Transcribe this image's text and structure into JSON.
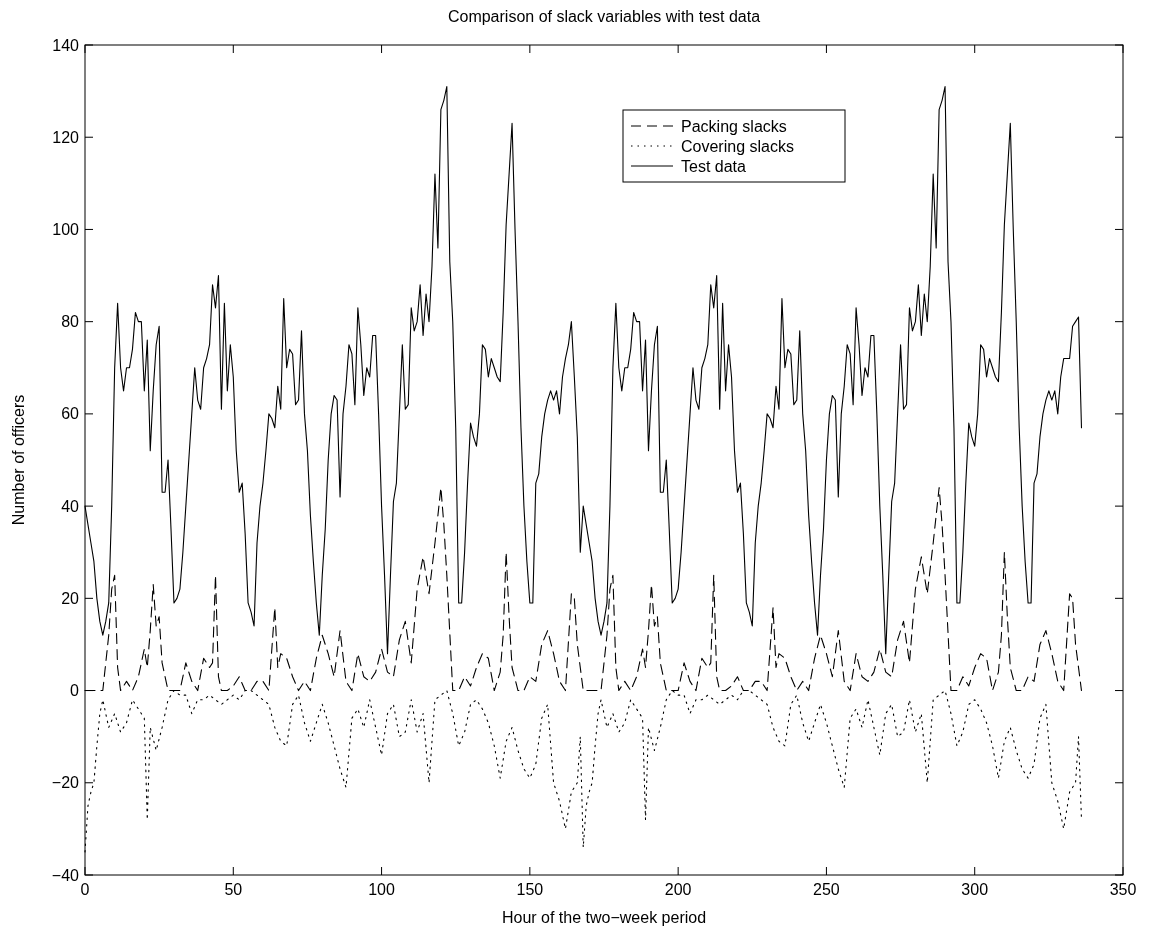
{
  "chart_data": {
    "type": "line",
    "title": "Comparison of slack variables with test data",
    "xlabel": "Hour of the two−week period",
    "ylabel": "Number of officers",
    "xlim": [
      0,
      350
    ],
    "xticks": [
      0,
      50,
      100,
      150,
      200,
      250,
      300,
      350
    ],
    "ylim": [
      -40,
      140
    ],
    "yticks": [
      {
        "value": -40,
        "label": "−40"
      },
      {
        "value": -20,
        "label": "−20"
      },
      0,
      20,
      40,
      60,
      80,
      100,
      120,
      140
    ],
    "grid": false,
    "legend": "top",
    "marker": "none",
    "series": [
      {
        "name": "Packing slacks",
        "color": "#000000",
        "line_style": "dashed",
        "x": [
          0,
          4,
          6,
          8,
          9,
          10,
          11,
          12,
          14,
          16,
          18,
          20,
          21,
          22,
          23,
          24,
          25,
          26,
          28,
          30,
          32,
          34,
          36,
          38,
          40,
          42,
          43,
          44,
          45,
          46,
          48,
          50,
          52,
          54,
          56,
          58,
          60,
          62,
          64,
          65,
          66,
          68,
          70,
          72,
          74,
          76,
          78,
          80,
          82,
          84,
          86,
          88,
          90,
          92,
          94,
          96,
          98,
          100,
          102,
          104,
          106,
          108,
          110,
          112,
          114,
          116,
          118,
          120,
          121,
          122,
          124,
          126,
          128,
          130,
          132,
          134,
          136,
          138,
          140,
          141,
          142,
          143,
          144,
          146,
          148,
          150,
          152,
          154,
          156,
          158,
          160,
          162,
          164,
          165,
          166,
          168,
          172,
          174,
          176,
          177,
          178,
          179,
          180,
          182,
          184,
          186,
          188,
          189,
          190,
          191,
          192,
          193,
          194,
          196,
          198,
          200,
          202,
          204,
          206,
          208,
          210,
          211,
          212,
          213,
          214,
          216,
          218,
          220,
          222,
          224,
          226,
          228,
          230,
          232,
          233,
          234,
          236,
          238,
          240,
          242,
          244,
          246,
          248,
          250,
          252,
          254,
          256,
          258,
          260,
          262,
          264,
          266,
          268,
          270,
          272,
          274,
          276,
          278,
          280,
          282,
          284,
          286,
          288,
          289,
          290,
          292,
          294,
          296,
          298,
          300,
          302,
          304,
          306,
          308,
          309,
          310,
          311,
          312,
          314,
          316,
          318,
          320,
          322,
          324,
          326,
          328,
          330,
          332,
          333,
          334,
          336
        ],
        "values": [
          0,
          0,
          0,
          12,
          22,
          25,
          5,
          0,
          2,
          0,
          3,
          9,
          5,
          13,
          23,
          14,
          16,
          6,
          0,
          0,
          0,
          6,
          2,
          0,
          7,
          5,
          6,
          25,
          3,
          0,
          0,
          1,
          3,
          0,
          0,
          2,
          2,
          0,
          18,
          5,
          8,
          7,
          3,
          0,
          2,
          0,
          7,
          12,
          8,
          3,
          13,
          2,
          0,
          8,
          3,
          2,
          4,
          9,
          4,
          3,
          11,
          15,
          6,
          22,
          29,
          21,
          32,
          44,
          36,
          25,
          0,
          0,
          3,
          1,
          5,
          8,
          7,
          0,
          4,
          12,
          30,
          16,
          5,
          0,
          0,
          3,
          2,
          10,
          13,
          8,
          2,
          0,
          21,
          20,
          10,
          0,
          0,
          0,
          12,
          22,
          25,
          5,
          0,
          2,
          0,
          3,
          9,
          5,
          13,
          23,
          14,
          16,
          6,
          0,
          0,
          0,
          6,
          2,
          0,
          7,
          5,
          6,
          25,
          3,
          0,
          0,
          1,
          3,
          0,
          0,
          2,
          2,
          0,
          18,
          5,
          8,
          7,
          3,
          0,
          2,
          0,
          7,
          12,
          8,
          3,
          13,
          2,
          0,
          8,
          3,
          2,
          4,
          9,
          4,
          3,
          11,
          15,
          6,
          22,
          29,
          21,
          32,
          44,
          36,
          25,
          0,
          0,
          3,
          1,
          5,
          8,
          7,
          0,
          4,
          12,
          30,
          16,
          5,
          0,
          0,
          3,
          2,
          10,
          13,
          8,
          2,
          0,
          21,
          20,
          10,
          0
        ]
      },
      {
        "name": "Covering slacks",
        "color": "#000000",
        "line_style": "dotted",
        "x": [
          0,
          1,
          2,
          3,
          4,
          5,
          6,
          8,
          10,
          12,
          14,
          16,
          18,
          20,
          21,
          22,
          24,
          26,
          28,
          30,
          32,
          34,
          36,
          38,
          40,
          42,
          44,
          46,
          48,
          50,
          52,
          54,
          56,
          58,
          60,
          62,
          64,
          66,
          68,
          70,
          72,
          74,
          76,
          78,
          80,
          82,
          84,
          86,
          88,
          90,
          92,
          94,
          96,
          98,
          100,
          102,
          104,
          106,
          108,
          110,
          112,
          114,
          116,
          118,
          120,
          122,
          124,
          126,
          128,
          130,
          132,
          134,
          136,
          138,
          140,
          142,
          144,
          146,
          148,
          150,
          152,
          154,
          156,
          158,
          160,
          162,
          164,
          166,
          167,
          168,
          169,
          170,
          171,
          172,
          173,
          174,
          176,
          178,
          180,
          182,
          184,
          186,
          188,
          189,
          190,
          192,
          194,
          196,
          198,
          200,
          202,
          204,
          206,
          208,
          210,
          212,
          214,
          216,
          218,
          220,
          222,
          224,
          226,
          228,
          230,
          232,
          234,
          236,
          238,
          240,
          242,
          244,
          246,
          248,
          250,
          252,
          254,
          256,
          258,
          260,
          262,
          264,
          266,
          268,
          270,
          272,
          274,
          276,
          278,
          280,
          282,
          284,
          286,
          288,
          290,
          292,
          294,
          296,
          298,
          300,
          302,
          304,
          306,
          308,
          310,
          312,
          314,
          316,
          318,
          320,
          322,
          324,
          326,
          328,
          330,
          332,
          334,
          335,
          336
        ],
        "values": [
          -35,
          -25,
          -22,
          -20,
          -12,
          -5,
          -2,
          -8,
          -5,
          -9,
          -7,
          -2,
          -4,
          -6,
          -28,
          -8,
          -13,
          -8,
          -2,
          0,
          -1,
          -1,
          -5,
          -2,
          -2,
          -1,
          -2,
          -3,
          -2,
          -1,
          -2,
          0,
          0,
          -1,
          -2,
          -3,
          -8,
          -11,
          -12,
          -3,
          -1,
          -7,
          -11,
          -7,
          -3,
          -7,
          -12,
          -17,
          -21,
          -6,
          -4,
          -8,
          -2,
          -8,
          -14,
          -5,
          -3,
          -10,
          -9,
          -2,
          -9,
          -5,
          -20,
          -2,
          -1,
          0,
          -5,
          -12,
          -9,
          -3,
          -2,
          -4,
          -7,
          -12,
          -19,
          -11,
          -8,
          -13,
          -17,
          -19,
          -16,
          -6,
          -3,
          -20,
          -24,
          -30,
          -22,
          -20,
          -10,
          -34,
          -25,
          -22,
          -20,
          -12,
          -5,
          -2,
          -8,
          -5,
          -9,
          -7,
          -2,
          -4,
          -6,
          -28,
          -8,
          -13,
          -8,
          -2,
          0,
          -1,
          -1,
          -5,
          -2,
          -2,
          -1,
          -2,
          -3,
          -2,
          -1,
          -2,
          0,
          0,
          -1,
          -2,
          -3,
          -8,
          -11,
          -12,
          -3,
          -1,
          -7,
          -11,
          -7,
          -3,
          -7,
          -12,
          -17,
          -21,
          -6,
          -4,
          -8,
          -2,
          -8,
          -14,
          -5,
          -3,
          -10,
          -9,
          -2,
          -9,
          -5,
          -20,
          -2,
          -1,
          0,
          -5,
          -12,
          -9,
          -3,
          -2,
          -4,
          -7,
          -12,
          -19,
          -11,
          -8,
          -13,
          -17,
          -19,
          -16,
          -6,
          -3,
          -20,
          -24,
          -30,
          -22,
          -20,
          -10,
          -28
        ]
      },
      {
        "name": "Test data",
        "color": "#000000",
        "line_style": "solid",
        "x": [
          0,
          1,
          2,
          3,
          4,
          5,
          6,
          7,
          8,
          9,
          10,
          11,
          12,
          13,
          14,
          15,
          16,
          17,
          18,
          19,
          20,
          21,
          22,
          23,
          24,
          25,
          26,
          27,
          28,
          29,
          30,
          31,
          32,
          33,
          34,
          35,
          36,
          37,
          38,
          39,
          40,
          41,
          42,
          43,
          44,
          45,
          46,
          47,
          48,
          49,
          50,
          51,
          52,
          53,
          54,
          55,
          56,
          57,
          58,
          59,
          60,
          61,
          62,
          63,
          64,
          65,
          66,
          67,
          68,
          69,
          70,
          71,
          72,
          73,
          74,
          75,
          76,
          77,
          78,
          79,
          80,
          81,
          82,
          83,
          84,
          85,
          86,
          87,
          88,
          89,
          90,
          91,
          92,
          93,
          94,
          95,
          96,
          97,
          98,
          99,
          100,
          101,
          102,
          103,
          104,
          105,
          106,
          107,
          108,
          109,
          110,
          111,
          112,
          113,
          114,
          115,
          116,
          117,
          118,
          119,
          120,
          121,
          122,
          123,
          124,
          125,
          126,
          127,
          128,
          129,
          130,
          131,
          132,
          133,
          134,
          135,
          136,
          137,
          138,
          139,
          140,
          141,
          142,
          143,
          144,
          145,
          146,
          147,
          148,
          149,
          150,
          151,
          152,
          153,
          154,
          155,
          156,
          157,
          158,
          159,
          160,
          161,
          162,
          163,
          164,
          165,
          166,
          167,
          168,
          169,
          170,
          171,
          172,
          173,
          174,
          175,
          176,
          177,
          178,
          179,
          180,
          181,
          182,
          183,
          184,
          185,
          186,
          187,
          188,
          189,
          190,
          191,
          192,
          193,
          194,
          195,
          196,
          197,
          198,
          199,
          200,
          201,
          202,
          203,
          204,
          205,
          206,
          207,
          208,
          209,
          210,
          211,
          212,
          213,
          214,
          215,
          216,
          217,
          218,
          219,
          220,
          221,
          222,
          223,
          224,
          225,
          226,
          227,
          228,
          229,
          230,
          231,
          232,
          233,
          234,
          235,
          236,
          237,
          238,
          239,
          240,
          241,
          242,
          243,
          244,
          245,
          246,
          247,
          248,
          249,
          250,
          251,
          252,
          253,
          254,
          255,
          256,
          257,
          258,
          259,
          260,
          261,
          262,
          263,
          264,
          265,
          266,
          267,
          268,
          269,
          270,
          271,
          272,
          273,
          274,
          275,
          276,
          277,
          278,
          279,
          280,
          281,
          282,
          283,
          284,
          285,
          286,
          287,
          288,
          289,
          290,
          291,
          292,
          293,
          294,
          295,
          296,
          297,
          298,
          299,
          300,
          301,
          302,
          303,
          304,
          305,
          306,
          307,
          308,
          309,
          310,
          311,
          312,
          313,
          314,
          315,
          316,
          317,
          318,
          319,
          320,
          321,
          322,
          323,
          324,
          325,
          326,
          327,
          328,
          329,
          330,
          331,
          332,
          333,
          334,
          335,
          336
        ],
        "values": [
          40,
          36,
          32,
          28,
          20,
          15,
          12,
          15,
          19,
          40,
          70,
          84,
          70,
          65,
          70,
          70,
          74,
          82,
          80,
          80,
          65,
          76,
          52,
          65,
          75,
          79,
          43,
          43,
          50,
          35,
          19,
          20,
          22,
          30,
          40,
          50,
          60,
          70,
          63,
          61,
          70,
          72,
          75,
          88,
          83,
          90,
          61,
          84,
          65,
          75,
          68,
          52,
          43,
          45,
          34,
          19,
          17,
          14,
          32,
          40,
          45,
          52,
          60,
          59,
          57,
          66,
          61,
          85,
          70,
          74,
          73,
          62,
          63,
          78,
          60,
          52,
          38,
          28,
          19,
          12,
          25,
          35,
          50,
          60,
          64,
          63,
          42,
          60,
          66,
          75,
          73,
          62,
          83,
          75,
          64,
          70,
          68,
          77,
          77,
          60,
          40,
          25,
          8,
          25,
          41,
          45,
          60,
          75,
          61,
          62,
          83,
          78,
          80,
          88,
          77,
          86,
          80,
          92,
          112,
          96,
          126,
          128,
          131,
          93,
          80,
          57,
          19,
          19,
          30,
          45,
          58,
          55,
          53,
          60,
          75,
          74,
          68,
          72,
          70,
          68,
          67,
          82,
          101,
          112,
          123,
          100,
          80,
          57,
          40,
          28,
          19,
          19,
          45,
          47,
          55,
          60,
          63,
          65,
          63,
          65,
          60,
          68,
          72,
          75,
          80,
          68,
          55,
          30,
          40,
          36,
          32,
          28,
          20,
          15,
          12,
          15,
          19,
          40,
          70,
          84,
          70,
          65,
          70,
          70,
          74,
          82,
          80,
          80,
          65,
          76,
          52,
          65,
          75,
          79,
          43,
          43,
          50,
          35,
          19,
          20,
          22,
          30,
          40,
          50,
          60,
          70,
          63,
          61,
          70,
          72,
          75,
          88,
          83,
          90,
          61,
          84,
          65,
          75,
          68,
          52,
          43,
          45,
          34,
          19,
          17,
          14,
          32,
          40,
          45,
          52,
          60,
          59,
          57,
          66,
          61,
          85,
          70,
          74,
          73,
          62,
          63,
          78,
          60,
          52,
          38,
          28,
          19,
          12,
          25,
          35,
          50,
          60,
          64,
          63,
          42,
          60,
          66,
          75,
          73,
          62,
          83,
          75,
          64,
          70,
          68,
          77,
          77,
          60,
          40,
          25,
          8,
          25,
          41,
          45,
          60,
          75,
          61,
          62,
          83,
          78,
          80,
          88,
          77,
          86,
          80,
          92,
          112,
          96,
          126,
          128,
          131,
          93,
          80,
          57,
          19,
          19,
          30,
          45,
          58,
          55,
          53,
          60,
          75,
          74,
          68,
          72,
          70,
          68,
          67,
          82,
          101,
          112,
          123,
          100,
          80,
          57,
          40,
          28,
          19,
          19,
          45,
          47,
          55,
          60,
          63,
          65,
          63,
          65,
          60,
          68,
          72,
          72,
          72,
          79,
          80,
          81,
          57
        ]
      }
    ]
  }
}
